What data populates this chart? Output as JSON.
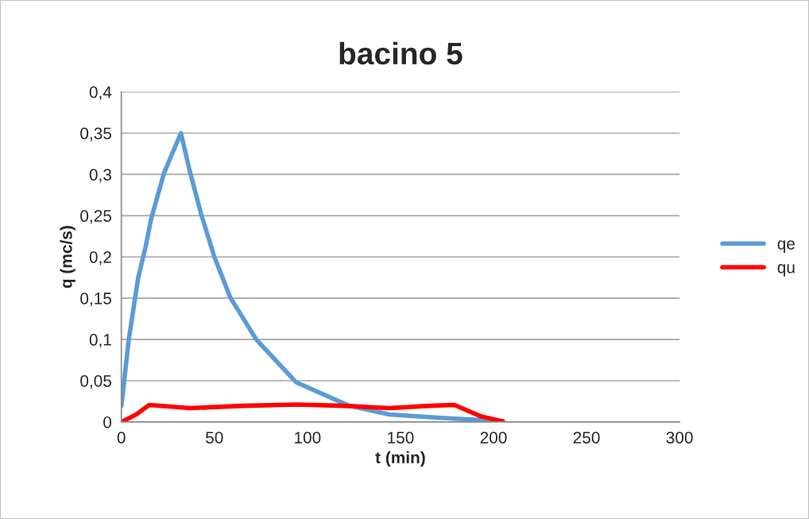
{
  "chart_data": {
    "type": "line",
    "title": "bacino 5",
    "xlabel": "t (min)",
    "ylabel": "q (mc/s)",
    "xlim": [
      0,
      300
    ],
    "xticks": [
      0,
      50,
      100,
      150,
      200,
      250,
      300
    ],
    "ylim": [
      0,
      0.4
    ],
    "yticks": [
      {
        "value": 0,
        "label": "0"
      },
      {
        "value": 0.05,
        "label": "0,05"
      },
      {
        "value": 0.1,
        "label": "0,1"
      },
      {
        "value": 0.15,
        "label": "0,15"
      },
      {
        "value": 0.2,
        "label": "0,2"
      },
      {
        "value": 0.25,
        "label": "0,25"
      },
      {
        "value": 0.3,
        "label": "0,3"
      },
      {
        "value": 0.35,
        "label": "0,35"
      },
      {
        "value": 0.4,
        "label": "0,4"
      }
    ],
    "grid": "y",
    "legend": "right",
    "marker": "none",
    "line_style": "solid",
    "series": [
      {
        "name": "qe",
        "color": "#5b9bd5",
        "x": [
          0,
          4,
          9,
          13,
          16,
          23,
          32,
          37,
          43,
          50,
          58.5,
          72.5,
          94,
          122,
          144,
          179,
          205
        ],
        "values": [
          0.019,
          0.1,
          0.174,
          0.212,
          0.246,
          0.302,
          0.35,
          0.302,
          0.251,
          0.2,
          0.151,
          0.1,
          0.048,
          0.02,
          0.009,
          0.004,
          0.001
        ]
      },
      {
        "name": "qu",
        "color": "#ff0000",
        "x": [
          0,
          8,
          15,
          37,
          65,
          94,
          120,
          144,
          165,
          179,
          183,
          193,
          205
        ],
        "values": [
          0,
          0.009,
          0.0206,
          0.0167,
          0.0195,
          0.021,
          0.0195,
          0.0167,
          0.0195,
          0.0206,
          0.0167,
          0.007,
          0.0006
        ]
      }
    ]
  }
}
